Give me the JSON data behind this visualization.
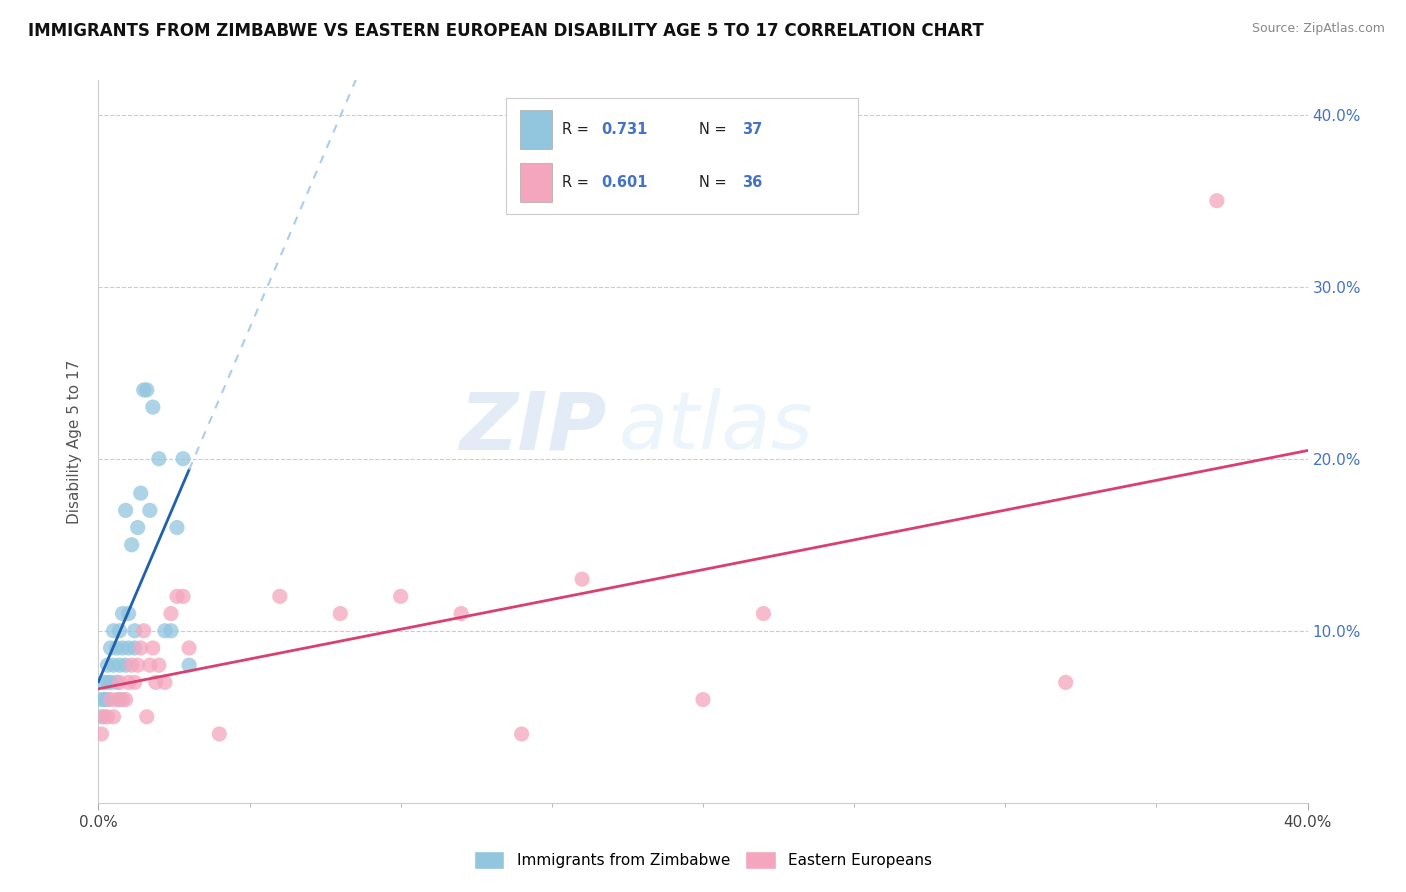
{
  "title": "IMMIGRANTS FROM ZIMBABWE VS EASTERN EUROPEAN DISABILITY AGE 5 TO 17 CORRELATION CHART",
  "source": "Source: ZipAtlas.com",
  "ylabel": "Disability Age 5 to 17",
  "legend_blue_r": "0.731",
  "legend_blue_n": "37",
  "legend_pink_r": "0.601",
  "legend_pink_n": "36",
  "legend_blue_label": "Immigrants from Zimbabwe",
  "legend_pink_label": "Eastern Europeans",
  "blue_color": "#92c5de",
  "pink_color": "#f4a6be",
  "blue_line_color": "#2060b0",
  "pink_line_color": "#d94070",
  "watermark_zip": "ZIP",
  "watermark_atlas": "atlas",
  "blue_scatter_x": [
    0.001,
    0.001,
    0.002,
    0.002,
    0.003,
    0.003,
    0.003,
    0.004,
    0.004,
    0.005,
    0.005,
    0.006,
    0.006,
    0.007,
    0.007,
    0.007,
    0.008,
    0.008,
    0.009,
    0.009,
    0.01,
    0.01,
    0.011,
    0.012,
    0.012,
    0.013,
    0.014,
    0.015,
    0.016,
    0.017,
    0.018,
    0.02,
    0.022,
    0.024,
    0.026,
    0.028,
    0.03
  ],
  "blue_scatter_y": [
    0.06,
    0.05,
    0.06,
    0.07,
    0.06,
    0.07,
    0.08,
    0.07,
    0.09,
    0.08,
    0.1,
    0.09,
    0.07,
    0.08,
    0.1,
    0.06,
    0.11,
    0.09,
    0.17,
    0.08,
    0.09,
    0.11,
    0.15,
    0.1,
    0.09,
    0.16,
    0.18,
    0.24,
    0.24,
    0.17,
    0.23,
    0.2,
    0.1,
    0.1,
    0.16,
    0.2,
    0.08
  ],
  "pink_scatter_x": [
    0.001,
    0.002,
    0.003,
    0.004,
    0.005,
    0.006,
    0.007,
    0.008,
    0.009,
    0.01,
    0.011,
    0.012,
    0.013,
    0.014,
    0.015,
    0.016,
    0.017,
    0.018,
    0.019,
    0.02,
    0.022,
    0.024,
    0.026,
    0.028,
    0.03,
    0.04,
    0.06,
    0.08,
    0.1,
    0.12,
    0.14,
    0.16,
    0.2,
    0.22,
    0.32,
    0.37
  ],
  "pink_scatter_y": [
    0.04,
    0.05,
    0.05,
    0.06,
    0.05,
    0.06,
    0.07,
    0.06,
    0.06,
    0.07,
    0.08,
    0.07,
    0.08,
    0.09,
    0.1,
    0.05,
    0.08,
    0.09,
    0.07,
    0.08,
    0.07,
    0.11,
    0.12,
    0.12,
    0.09,
    0.04,
    0.12,
    0.11,
    0.12,
    0.11,
    0.04,
    0.13,
    0.06,
    0.11,
    0.07,
    0.35
  ],
  "xlim": [
    0.0,
    0.4
  ],
  "ylim": [
    0.0,
    0.42
  ],
  "yticks": [
    0.0,
    0.1,
    0.2,
    0.3,
    0.4
  ],
  "yticklabels_right": [
    "",
    "10.0%",
    "20.0%",
    "30.0%",
    "40.0%"
  ]
}
